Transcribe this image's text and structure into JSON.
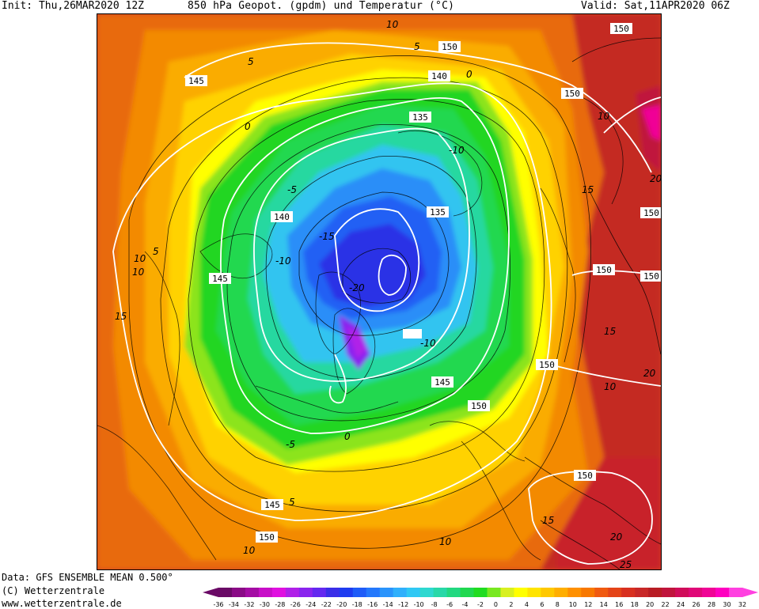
{
  "header": {
    "init": "Init: Thu,26MAR2020 12Z",
    "title": "850 hPa Geopot. (gpdm) und Temperatur (°C)",
    "valid": "Valid: Sat,11APR2020 06Z"
  },
  "footer": {
    "data_source": "Data: GFS ENSEMBLE MEAN 0.500°",
    "copyright": "(C) Wetterzentrale",
    "url": "www.wetterzentrale.de"
  },
  "map": {
    "projection": "north-polar-stereographic",
    "fields": [
      "850 hPa geopotential height (gpdm) - white contours",
      "850 hPa temperature (°C) - color fill and thin black contours"
    ],
    "geopotential_labels": [
      "150",
      "145",
      "140",
      "135",
      "150",
      "145",
      "140",
      "135",
      "145",
      "150",
      "150",
      "150",
      "150",
      "150",
      "150",
      "150",
      "145",
      "150"
    ],
    "temperature_labels": [
      "10",
      "5",
      "0",
      "-5",
      "-10",
      "-15",
      "-20",
      "15",
      "10",
      "5",
      "0",
      "-5",
      "-10",
      "10",
      "15",
      "20",
      "10",
      "15",
      "20",
      "10",
      "5",
      "10",
      "15",
      "20",
      "25",
      "10",
      "0",
      "-10",
      "5"
    ]
  },
  "legend": {
    "tick_labels": [
      "-36",
      "-34",
      "-32",
      "-30",
      "-28",
      "-26",
      "-24",
      "-22",
      "-20",
      "-18",
      "-16",
      "-14",
      "-12",
      "-10",
      "-8",
      "-6",
      "-4",
      "-2",
      "0",
      "2",
      "4",
      "6",
      "8",
      "10",
      "12",
      "14",
      "16",
      "18",
      "20",
      "22",
      "24",
      "26",
      "28",
      "30",
      "32"
    ],
    "colors": [
      "#6a0a66",
      "#8a0a86",
      "#a40ca4",
      "#c80ec8",
      "#e010e0",
      "#b020e8",
      "#8a24ee",
      "#6428f0",
      "#3a2ee8",
      "#1f3cf0",
      "#1f5cf8",
      "#2478fc",
      "#2a94fc",
      "#30b0fc",
      "#30c8f4",
      "#2ed8d0",
      "#28d8a8",
      "#22d880",
      "#20d850",
      "#20dc20",
      "#78e820",
      "#d8f020",
      "#ffff00",
      "#ffe400",
      "#ffc800",
      "#ffae00",
      "#ff9000",
      "#f87800",
      "#f05a10",
      "#e44418",
      "#d83020",
      "#c82828",
      "#b81c24",
      "#c0143c",
      "#d00c5a",
      "#e00878",
      "#f00496",
      "#ff00c0",
      "#ff40e0"
    ]
  }
}
